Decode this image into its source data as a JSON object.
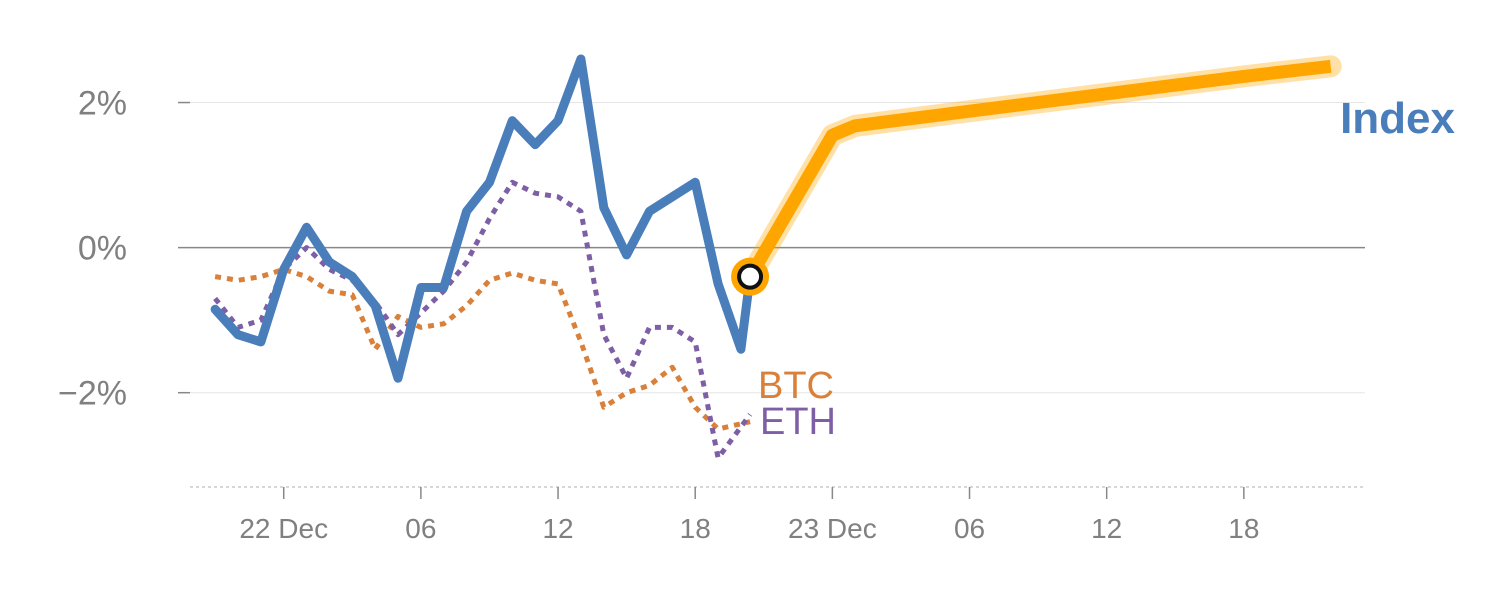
{
  "chart_data": {
    "type": "line",
    "title": "",
    "xlabel": "",
    "ylabel": "",
    "ylim": [
      -3.3,
      3.0
    ],
    "y_ticks": [
      {
        "value": 2,
        "label": "2%"
      },
      {
        "value": 0,
        "label": "0%"
      },
      {
        "value": -2,
        "label": "−2%"
      }
    ],
    "x_ticks": [
      {
        "hour": 0,
        "label": "22 Dec"
      },
      {
        "hour": 6,
        "label": "06"
      },
      {
        "hour": 12,
        "label": "12"
      },
      {
        "hour": 18,
        "label": "18"
      },
      {
        "hour": 24,
        "label": "23 Dec"
      },
      {
        "hour": 30,
        "label": "06"
      },
      {
        "hour": 36,
        "label": "12"
      },
      {
        "hour": 42,
        "label": "18"
      }
    ],
    "xlim_hours": [
      -4.1,
      47.3
    ],
    "grid": true,
    "series": [
      {
        "name": "BTC",
        "style": "dotted",
        "color": "#d9803a",
        "hours": [
          -3,
          -2,
          -1,
          0,
          1,
          2,
          3,
          4,
          5,
          6,
          7,
          8,
          9,
          10,
          11,
          12,
          13,
          14,
          15,
          16,
          17,
          18,
          19,
          20.4
        ],
        "values": [
          -0.4,
          -0.45,
          -0.4,
          -0.3,
          -0.4,
          -0.6,
          -0.65,
          -1.4,
          -0.95,
          -1.1,
          -1.05,
          -0.8,
          -0.45,
          -0.35,
          -0.45,
          -0.5,
          -1.3,
          -2.2,
          -2.0,
          -1.9,
          -1.65,
          -2.2,
          -2.5,
          -2.4
        ]
      },
      {
        "name": "ETH",
        "style": "dotted",
        "color": "#7e5fa6",
        "hours": [
          -3,
          -2,
          -1,
          0,
          1,
          2,
          3,
          4,
          5,
          6,
          7,
          8,
          9,
          10,
          11,
          12,
          13,
          14,
          15,
          16,
          17,
          18,
          19,
          20.4
        ],
        "values": [
          -0.7,
          -1.1,
          -1.0,
          -0.3,
          0.0,
          -0.3,
          -0.45,
          -0.75,
          -1.2,
          -0.9,
          -0.6,
          -0.2,
          0.4,
          0.9,
          0.75,
          0.7,
          0.5,
          -1.2,
          -1.8,
          -1.1,
          -1.1,
          -1.3,
          -2.9,
          -2.3
        ]
      },
      {
        "name": "Index",
        "style": "solid",
        "color": "#4a7ebb",
        "hours": [
          -3,
          -2,
          -1,
          0,
          1,
          2,
          3,
          4,
          5,
          6,
          7,
          8,
          9,
          10,
          11,
          12,
          13,
          14,
          15,
          16,
          17,
          18,
          19,
          20,
          20.4
        ],
        "values": [
          -0.85,
          -1.2,
          -1.3,
          -0.3,
          0.28,
          -0.2,
          -0.4,
          -0.8,
          -1.8,
          -0.55,
          -0.55,
          0.5,
          0.9,
          1.75,
          1.42,
          1.75,
          2.6,
          0.55,
          -0.1,
          0.5,
          0.7,
          0.9,
          -0.5,
          -1.4,
          -0.4
        ]
      }
    ],
    "forecast": {
      "color": "#ffa500",
      "hours": [
        20.4,
        24,
        25,
        30,
        36,
        42,
        45.8
      ],
      "values": [
        -0.4,
        1.55,
        1.68,
        1.88,
        2.12,
        2.36,
        2.5
      ]
    },
    "marker": {
      "hour": 20.4,
      "value": -0.4
    },
    "labels": {
      "index": {
        "text": "Index",
        "color": "#4a7ebb"
      },
      "btc": {
        "text": "BTC",
        "color": "#d9803a"
      },
      "eth": {
        "text": "ETH",
        "color": "#7e5fa6"
      }
    }
  }
}
